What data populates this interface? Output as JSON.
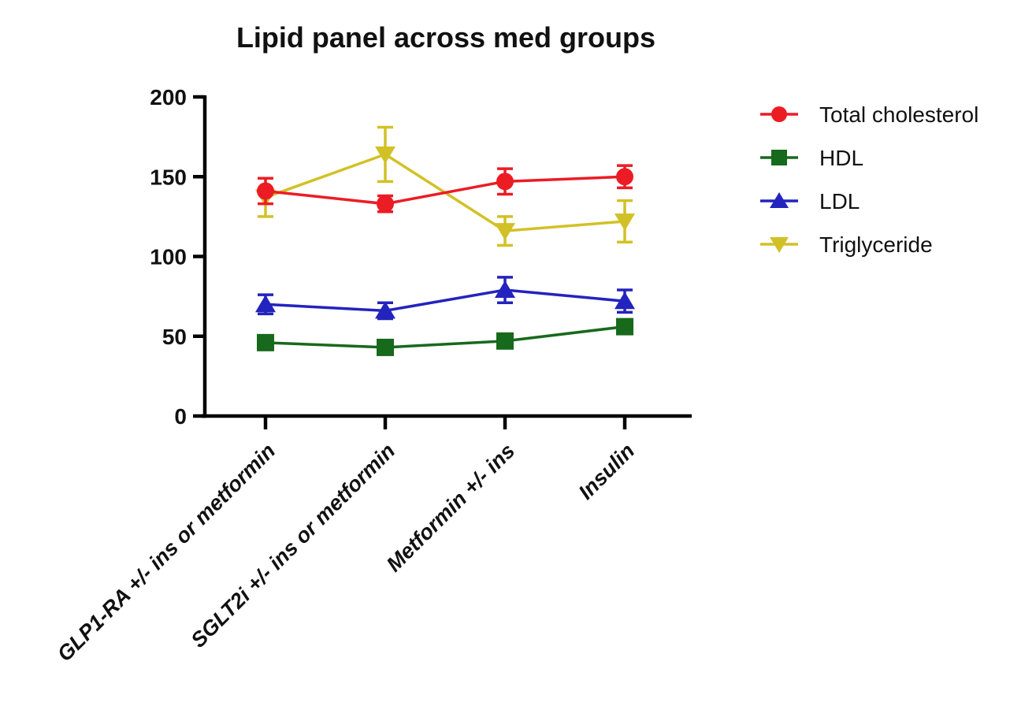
{
  "chart_data": {
    "type": "line",
    "title": "Lipid panel across med groups",
    "categories": [
      "GLP1-RA +/- ins or metformin",
      "SGLT2i +/- ins or metformin",
      "Metformin +/- ins",
      "Insulin"
    ],
    "xlabel": "",
    "ylabel": "",
    "ylim": [
      0,
      200
    ],
    "yticks": [
      0,
      50,
      100,
      150,
      200
    ],
    "grid": false,
    "legend_position": "right",
    "error_bars": true,
    "series": [
      {
        "name": "Total cholesterol",
        "color": "#EC1C24",
        "marker": "circle",
        "values": [
          141,
          133,
          147,
          150
        ],
        "errors": [
          8,
          5,
          8,
          7
        ]
      },
      {
        "name": "HDL",
        "color": "#17691C",
        "marker": "square",
        "values": [
          46,
          43,
          47,
          56
        ],
        "errors": [
          2,
          2,
          2,
          2
        ]
      },
      {
        "name": "LDL",
        "color": "#2323BE",
        "marker": "triangle-up",
        "values": [
          70,
          66,
          79,
          72
        ],
        "errors": [
          6,
          5,
          8,
          7
        ]
      },
      {
        "name": "Triglyceride",
        "color": "#D2C126",
        "marker": "triangle-down",
        "values": [
          137,
          164,
          116,
          122
        ],
        "errors": [
          12,
          17,
          9,
          13
        ]
      }
    ],
    "axis_color": "#000000",
    "text_color": "#111111",
    "background": "#ffffff"
  }
}
